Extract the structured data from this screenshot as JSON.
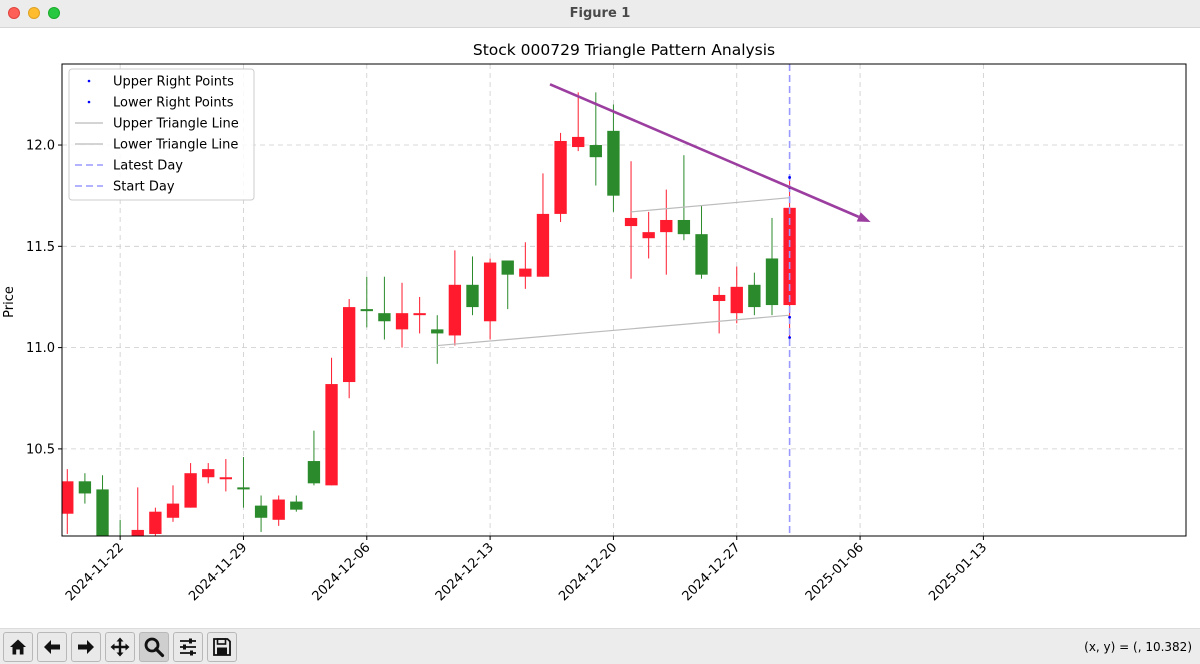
{
  "window": {
    "title": "Figure 1"
  },
  "toolbar": {
    "buttons": [
      {
        "name": "home-button",
        "icon": "home-icon"
      },
      {
        "name": "back-button",
        "icon": "arrow-left-icon"
      },
      {
        "name": "forward-button",
        "icon": "arrow-right-icon"
      },
      {
        "name": "pan-button",
        "icon": "move-icon"
      },
      {
        "name": "zoom-button",
        "icon": "zoom-icon"
      },
      {
        "name": "configure-subplots-button",
        "icon": "sliders-icon"
      },
      {
        "name": "save-button",
        "icon": "floppy-disk-icon"
      }
    ],
    "coords": "(x, y) = (, 10.382)"
  },
  "chart_data": {
    "type": "candlestick",
    "title": "Stock 000729 Triangle Pattern Analysis",
    "xlabel": "",
    "ylabel": "Price",
    "ylim": [
      10.07,
      12.4
    ],
    "yticks": [
      10.5,
      11.0,
      11.5,
      12.0
    ],
    "ytick_labels": [
      "10.5",
      "11.0",
      "11.5",
      "12.0"
    ],
    "grid": true,
    "legend_position": "upper-left",
    "xticks": [
      {
        "date": "2024-11-22",
        "index": 3
      },
      {
        "date": "2024-11-29",
        "index": 10
      },
      {
        "date": "2024-12-06",
        "index": 17
      },
      {
        "date": "2024-12-13",
        "index": 24
      },
      {
        "date": "2024-12-20",
        "index": 31
      },
      {
        "date": "2024-12-27",
        "index": 38
      },
      {
        "date": "2025-01-06",
        "index": 45
      },
      {
        "date": "2025-01-13",
        "index": 52
      }
    ],
    "xrange": [
      -0.3,
      63.5
    ],
    "candles": [
      {
        "i": 0,
        "o": 10.18,
        "c": 10.34,
        "h": 10.4,
        "l": 10.08
      },
      {
        "i": 1,
        "o": 10.34,
        "c": 10.28,
        "h": 10.38,
        "l": 10.23
      },
      {
        "i": 2,
        "o": 10.3,
        "c": 10.06,
        "h": 10.37,
        "l": 10.02
      },
      {
        "i": 3,
        "o": 10.0,
        "c": 9.9,
        "h": 10.15,
        "l": 9.85
      },
      {
        "i": 4,
        "o": 10.05,
        "c": 10.1,
        "h": 10.31,
        "l": 9.95
      },
      {
        "i": 5,
        "o": 10.08,
        "c": 10.19,
        "h": 10.21,
        "l": 10.05
      },
      {
        "i": 6,
        "o": 10.16,
        "c": 10.23,
        "h": 10.32,
        "l": 10.14
      },
      {
        "i": 7,
        "o": 10.21,
        "c": 10.38,
        "h": 10.43,
        "l": 10.21
      },
      {
        "i": 8,
        "o": 10.36,
        "c": 10.4,
        "h": 10.43,
        "l": 10.33
      },
      {
        "i": 9,
        "o": 10.36,
        "c": 10.36,
        "h": 10.45,
        "l": 10.29
      },
      {
        "i": 10,
        "o": 10.31,
        "c": 10.3,
        "h": 10.46,
        "l": 10.21
      },
      {
        "i": 11,
        "o": 10.22,
        "c": 10.16,
        "h": 10.27,
        "l": 10.09
      },
      {
        "i": 12,
        "o": 10.15,
        "c": 10.25,
        "h": 10.27,
        "l": 10.12
      },
      {
        "i": 13,
        "o": 10.24,
        "c": 10.2,
        "h": 10.27,
        "l": 10.19
      },
      {
        "i": 14,
        "o": 10.44,
        "c": 10.33,
        "h": 10.59,
        "l": 10.32
      },
      {
        "i": 15,
        "o": 10.32,
        "c": 10.82,
        "h": 10.95,
        "l": 10.32
      },
      {
        "i": 16,
        "o": 10.83,
        "c": 11.2,
        "h": 11.24,
        "l": 10.75
      },
      {
        "i": 17,
        "o": 11.19,
        "c": 11.18,
        "h": 11.35,
        "l": 11.1
      },
      {
        "i": 18,
        "o": 11.17,
        "c": 11.13,
        "h": 11.35,
        "l": 11.04
      },
      {
        "i": 19,
        "o": 11.09,
        "c": 11.17,
        "h": 11.32,
        "l": 11.0
      },
      {
        "i": 20,
        "o": 11.17,
        "c": 11.17,
        "h": 11.25,
        "l": 11.07
      },
      {
        "i": 21,
        "o": 11.09,
        "c": 11.07,
        "h": 11.16,
        "l": 10.92
      },
      {
        "i": 22,
        "o": 11.06,
        "c": 11.31,
        "h": 11.48,
        "l": 11.01
      },
      {
        "i": 23,
        "o": 11.31,
        "c": 11.2,
        "h": 11.45,
        "l": 11.16
      },
      {
        "i": 24,
        "o": 11.13,
        "c": 11.42,
        "h": 11.44,
        "l": 11.04
      },
      {
        "i": 25,
        "o": 11.43,
        "c": 11.36,
        "h": 11.43,
        "l": 11.19
      },
      {
        "i": 26,
        "o": 11.35,
        "c": 11.39,
        "h": 11.52,
        "l": 11.29
      },
      {
        "i": 27,
        "o": 11.35,
        "c": 11.66,
        "h": 11.86,
        "l": 11.35
      },
      {
        "i": 28,
        "o": 11.66,
        "c": 12.02,
        "h": 12.06,
        "l": 11.62
      },
      {
        "i": 29,
        "o": 11.99,
        "c": 12.04,
        "h": 12.26,
        "l": 11.97
      },
      {
        "i": 30,
        "o": 12.0,
        "c": 11.94,
        "h": 12.26,
        "l": 11.8
      },
      {
        "i": 31,
        "o": 12.07,
        "c": 11.75,
        "h": 12.2,
        "l": 11.67
      },
      {
        "i": 32,
        "o": 11.6,
        "c": 11.64,
        "h": 11.92,
        "l": 11.34
      },
      {
        "i": 33,
        "o": 11.54,
        "c": 11.57,
        "h": 11.67,
        "l": 11.44
      },
      {
        "i": 34,
        "o": 11.57,
        "c": 11.63,
        "h": 11.78,
        "l": 11.36
      },
      {
        "i": 35,
        "o": 11.63,
        "c": 11.56,
        "h": 11.95,
        "l": 11.53
      },
      {
        "i": 36,
        "o": 11.56,
        "c": 11.36,
        "h": 11.7,
        "l": 11.34
      },
      {
        "i": 37,
        "o": 11.23,
        "c": 11.26,
        "h": 11.3,
        "l": 11.07
      },
      {
        "i": 38,
        "o": 11.17,
        "c": 11.3,
        "h": 11.4,
        "l": 11.12
      },
      {
        "i": 39,
        "o": 11.31,
        "c": 11.2,
        "h": 11.37,
        "l": 11.16
      },
      {
        "i": 40,
        "o": 11.44,
        "c": 11.21,
        "h": 11.64,
        "l": 11.16
      },
      {
        "i": 41,
        "o": 11.21,
        "c": 11.69,
        "h": 11.85,
        "l": 11.05
      }
    ],
    "series": [
      {
        "name": "Upper Right Points",
        "kind": "points",
        "color": "#0000ff",
        "points": [
          [
            41,
            11.84
          ],
          [
            41,
            11.79
          ]
        ]
      },
      {
        "name": "Lower Right Points",
        "kind": "points",
        "color": "#0000ff",
        "points": [
          [
            41,
            11.15
          ],
          [
            41,
            11.05
          ]
        ]
      },
      {
        "name": "Upper Triangle Line",
        "kind": "line",
        "color": "#bbbbbb",
        "points": [
          [
            32,
            11.67
          ],
          [
            41,
            11.74
          ]
        ]
      },
      {
        "name": "Lower Triangle Line",
        "kind": "line",
        "color": "#bbbbbb",
        "points": [
          [
            21,
            11.01
          ],
          [
            41,
            11.16
          ]
        ]
      },
      {
        "name": "Latest Day",
        "kind": "vline",
        "color": "#9999ff",
        "x": 41
      },
      {
        "name": "Start Day",
        "kind": "vline",
        "color": "#9999ff",
        "x": 41
      }
    ],
    "annotation_arrow": {
      "color": "#9b3ea0",
      "from": [
        27.4,
        12.3
      ],
      "to": [
        45.6,
        11.62
      ]
    },
    "colors": {
      "up": "#ff1a2e",
      "down": "#2b8a2b"
    }
  }
}
